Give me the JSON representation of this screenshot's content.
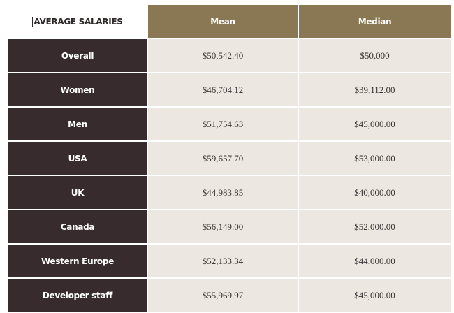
{
  "table": {
    "corner_label": "AVERAGE SALARIES",
    "headers": {
      "mean": "Mean",
      "median": "Median"
    },
    "rows": [
      {
        "label": "Overall",
        "mean": "$50,542.40",
        "median": "$50,000"
      },
      {
        "label": "Women",
        "mean": "$46,704.12",
        "median": "$39,112.00"
      },
      {
        "label": "Men",
        "mean": "$51,754.63",
        "median": "$45,000.00"
      },
      {
        "label": "USA",
        "mean": "$59,657.70",
        "median": "$53,000.00"
      },
      {
        "label": "UK",
        "mean": "$44,983.85",
        "median": "$40,000.00"
      },
      {
        "label": "Canada",
        "mean": "$56,149.00",
        "median": "$52,000.00"
      },
      {
        "label": "Western Europe",
        "mean": "$52,133.34",
        "median": "$44,000.00"
      },
      {
        "label": "Developer staff",
        "mean": "$55,969.97",
        "median": "$45,000.00"
      }
    ]
  },
  "colors": {
    "header_gold": "#8a7753",
    "row_label_dark": "#372b2e",
    "cell_beige": "#ede7e1"
  }
}
